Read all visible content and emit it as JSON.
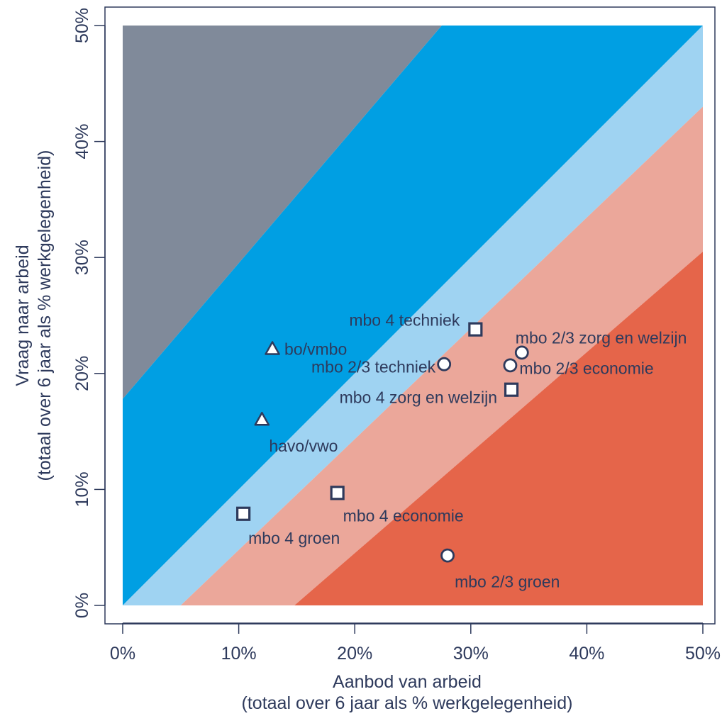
{
  "chart_data": {
    "type": "scatter",
    "xlabel": "Aanbod van arbeid",
    "xlabel_sub": "(totaal over 6 jaar als % werkgelegenheid)",
    "ylabel": "Vraag naar arbeid",
    "ylabel_sub": "(totaal over 6 jaar als % werkgelegenheid)",
    "xlim": [
      0,
      50
    ],
    "ylim": [
      0,
      50
    ],
    "x_ticks": [
      "0%",
      "10%",
      "20%",
      "30%",
      "40%",
      "50%"
    ],
    "y_ticks": [
      "0%",
      "10%",
      "20%",
      "30%",
      "40%",
      "50%"
    ],
    "grid": false,
    "bands": [
      {
        "name": "grey",
        "color": "#808a9a",
        "polygon": [
          [
            0,
            17.8
          ],
          [
            0,
            50
          ],
          [
            27.5,
            50
          ]
        ]
      },
      {
        "name": "blue",
        "color": "#009fe3",
        "polygon": [
          [
            0,
            0
          ],
          [
            0,
            17.8
          ],
          [
            27.5,
            50
          ],
          [
            50,
            50
          ]
        ]
      },
      {
        "name": "light-blue",
        "color": "#9fd3f2",
        "polygon": [
          [
            0,
            0
          ],
          [
            5,
            0
          ],
          [
            50,
            43
          ],
          [
            50,
            50
          ]
        ]
      },
      {
        "name": "light-red",
        "color": "#eba79a",
        "polygon": [
          [
            5,
            0
          ],
          [
            14.8,
            0
          ],
          [
            50,
            30.5
          ],
          [
            50,
            43
          ]
        ]
      },
      {
        "name": "red",
        "color": "#e5654a",
        "polygon": [
          [
            14.8,
            0
          ],
          [
            50,
            0
          ],
          [
            50,
            30.5
          ]
        ]
      }
    ],
    "series": [
      {
        "marker": "triangle",
        "points": [
          {
            "label": "bo/vmbo",
            "x": 12.9,
            "y": 22.1
          },
          {
            "label": "havo/vwo",
            "x": 12.0,
            "y": 16.0
          }
        ]
      },
      {
        "marker": "circle",
        "points": [
          {
            "label": "mbo 2/3 techniek",
            "x": 27.7,
            "y": 20.8
          },
          {
            "label": "mbo 2/3 zorg en welzijn",
            "x": 34.4,
            "y": 21.8
          },
          {
            "label": "mbo 2/3 economie",
            "x": 33.4,
            "y": 20.7
          },
          {
            "label": "mbo 2/3 groen",
            "x": 28.0,
            "y": 4.3
          }
        ]
      },
      {
        "marker": "square",
        "points": [
          {
            "label": "mbo 4 techniek",
            "x": 30.4,
            "y": 23.8
          },
          {
            "label": "mbo 4 zorg en welzijn",
            "x": 33.5,
            "y": 18.6
          },
          {
            "label": "mbo 4 economie",
            "x": 18.5,
            "y": 9.7
          },
          {
            "label": "mbo 4 groen",
            "x": 10.4,
            "y": 7.9
          }
        ]
      }
    ],
    "colors": {
      "axis": "#2e3a5c",
      "marker_stroke": "#2e3a5c",
      "marker_fill": "#ffffff",
      "frame": "#ffffff"
    }
  }
}
